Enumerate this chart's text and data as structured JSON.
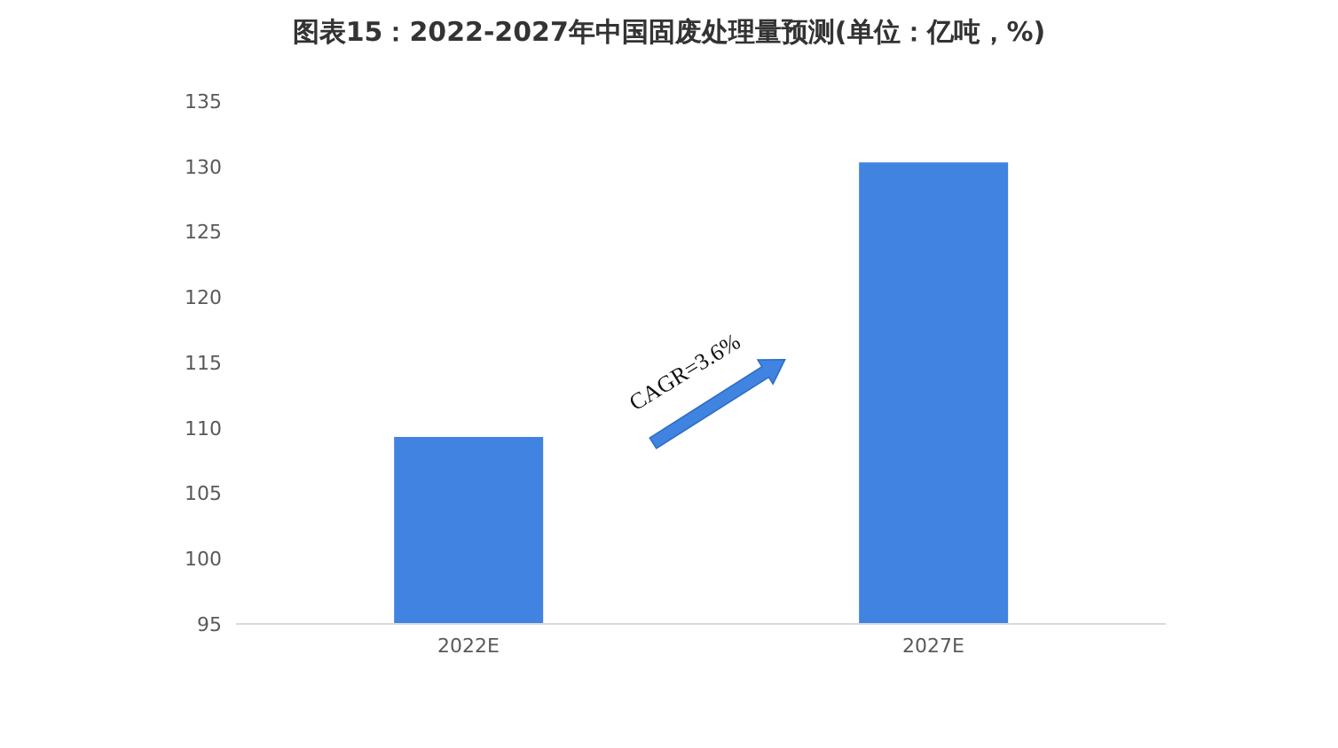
{
  "chart_data": {
    "type": "bar",
    "title": "图表15：2022-2027年中国固废处理量预测(单位：亿吨，%)",
    "categories": [
      "2022E",
      "2027E"
    ],
    "values": [
      109.3,
      130.3
    ],
    "color": "#4183e0",
    "ylim": [
      95,
      135
    ],
    "yticks": [
      95,
      100,
      105,
      110,
      115,
      120,
      125,
      130,
      135
    ],
    "annotations": [
      "CAGR=3.6%"
    ]
  }
}
